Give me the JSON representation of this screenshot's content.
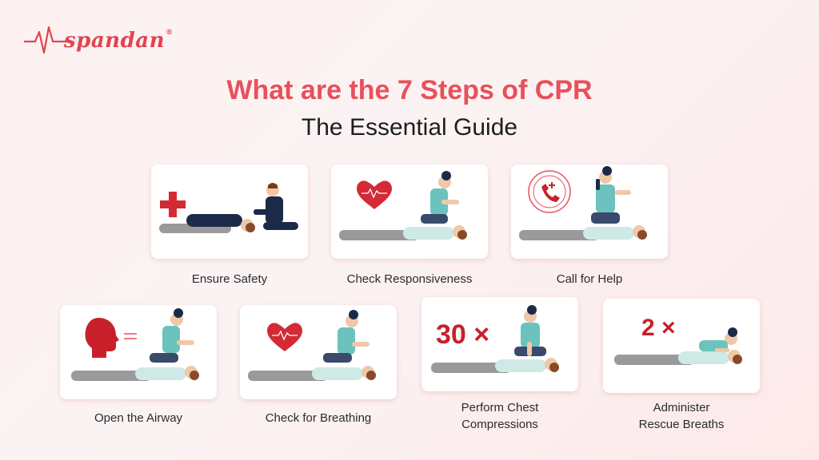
{
  "brand": {
    "logo_text": "spandan",
    "logo_mark": "®"
  },
  "title": "What are the 7 Steps of CPR",
  "subtitle": "The Essential Guide",
  "colors": {
    "accent": "#e8505b",
    "dark_red": "#c8202b",
    "scrub": "#6cc3bd",
    "text": "#1e1e1e"
  },
  "steps": [
    {
      "label": "Ensure Safety",
      "icon": "red-cross-icon"
    },
    {
      "label": "Check Responsiveness",
      "icon": "heart-icon"
    },
    {
      "label": "Call for Help",
      "icon": "phone-call-icon"
    },
    {
      "label": "Open the Airway",
      "icon": "head-airway-icon"
    },
    {
      "label": "Check for Breathing",
      "icon": "heart-icon"
    },
    {
      "label": "Perform Chest\nCompressions",
      "icon": "count-badge",
      "count": "30 ×"
    },
    {
      "label": "Administer\nRescue Breaths",
      "icon": "count-badge",
      "count": "2 ×"
    }
  ]
}
